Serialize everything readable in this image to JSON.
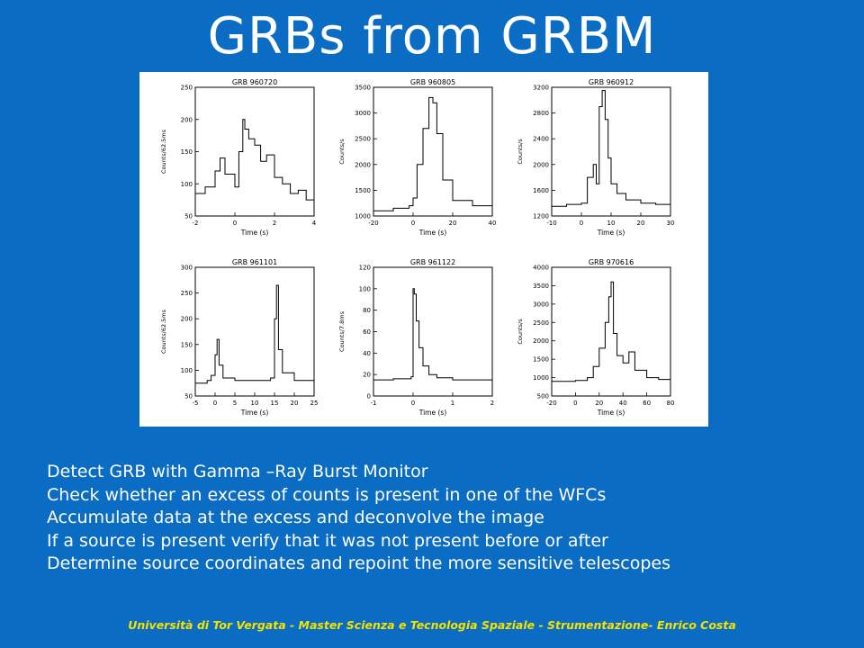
{
  "title": "GRBs from GRBM",
  "bullets": [
    "Detect GRB with Gamma –Ray Burst Monitor",
    "Check whether an excess of counts is present in one of the WFCs",
    "Accumulate data at the excess and deconvolve the image",
    "If a source is present verify that it was not present before or after",
    "Determine source coordinates and repoint the more sensitive telescopes"
  ],
  "footer": "Università di Tor Vergata - Master Scienza e Tecnologia Spaziale - Strumentazione- Enrico Costa",
  "chart_data": [
    {
      "type": "line",
      "title": "GRB 960720",
      "xlabel": "Time (s)",
      "ylabel": "Counts/62.5ms",
      "xlim": [
        -2,
        4
      ],
      "ylim": [
        50,
        250
      ],
      "xticks": [
        -2,
        0,
        2,
        4
      ],
      "yticks": [
        50,
        100,
        150,
        200,
        250
      ],
      "x": [
        -2.0,
        -1.5,
        -1.0,
        -0.75,
        -0.5,
        0.0,
        0.2,
        0.4,
        0.5,
        0.7,
        1.0,
        1.3,
        1.6,
        2.0,
        2.4,
        2.8,
        3.2,
        3.6,
        4.0
      ],
      "y": [
        85,
        95,
        120,
        140,
        115,
        95,
        150,
        200,
        185,
        170,
        160,
        135,
        145,
        110,
        100,
        85,
        90,
        75,
        65
      ]
    },
    {
      "type": "line",
      "title": "GRB 960805",
      "xlabel": "Time (s)",
      "ylabel": "Counts/s",
      "xlim": [
        -20,
        40
      ],
      "ylim": [
        1000,
        3500
      ],
      "xticks": [
        -20,
        0,
        20,
        40
      ],
      "yticks": [
        1000,
        1500,
        2000,
        2500,
        3000,
        3500
      ],
      "x": [
        -20,
        -10,
        -2,
        0,
        2,
        5,
        8,
        10,
        12,
        15,
        20,
        30,
        40
      ],
      "y": [
        1100,
        1150,
        1200,
        1350,
        2000,
        2700,
        3300,
        3200,
        2600,
        1700,
        1300,
        1200,
        1150
      ]
    },
    {
      "type": "line",
      "title": "GRB 960912",
      "xlabel": "Time (s)",
      "ylabel": "Counts/s",
      "xlim": [
        -10,
        30
      ],
      "ylim": [
        1200,
        3200
      ],
      "xticks": [
        -10,
        0,
        10,
        20,
        30
      ],
      "yticks": [
        1200,
        1600,
        2000,
        2400,
        2800,
        3200
      ],
      "x": [
        -10,
        -5,
        0,
        2,
        4,
        5,
        6,
        7,
        8,
        9,
        10,
        12,
        15,
        20,
        25,
        30
      ],
      "y": [
        1350,
        1380,
        1400,
        1800,
        2000,
        1700,
        2900,
        3150,
        2700,
        2100,
        1700,
        1550,
        1450,
        1400,
        1380,
        1350
      ]
    },
    {
      "type": "line",
      "title": "GRB 961101",
      "xlabel": "Time (s)",
      "ylabel": "Counts/62.5ms",
      "xlim": [
        -5,
        25
      ],
      "ylim": [
        50,
        300
      ],
      "xticks": [
        -5,
        0,
        5,
        10,
        15,
        20,
        25
      ],
      "yticks": [
        50,
        100,
        150,
        200,
        250,
        300
      ],
      "x": [
        -5,
        -2,
        -1,
        0,
        0.5,
        1,
        2,
        5,
        10,
        14,
        15,
        15.5,
        16,
        17,
        20,
        25
      ],
      "y": [
        75,
        80,
        90,
        130,
        160,
        110,
        85,
        80,
        80,
        85,
        200,
        265,
        140,
        95,
        80,
        75
      ]
    },
    {
      "type": "line",
      "title": "GRB 961122",
      "xlabel": "Time (s)",
      "ylabel": "Counts/7.8ms",
      "xlim": [
        -1,
        2
      ],
      "ylim": [
        0,
        120
      ],
      "xticks": [
        -1,
        0,
        1,
        2
      ],
      "yticks": [
        0,
        20,
        40,
        60,
        80,
        100,
        120
      ],
      "x": [
        -1.0,
        -0.5,
        -0.05,
        0.0,
        0.03,
        0.08,
        0.15,
        0.25,
        0.4,
        0.6,
        1.0,
        2.0
      ],
      "y": [
        15,
        16,
        18,
        100,
        95,
        70,
        45,
        28,
        20,
        17,
        15,
        15
      ]
    },
    {
      "type": "line",
      "title": "GRB 970616",
      "xlabel": "Time (s)",
      "ylabel": "Counts/s",
      "xlim": [
        -20,
        80
      ],
      "ylim": [
        500,
        4000
      ],
      "xticks": [
        -20,
        0,
        20,
        40,
        60,
        80
      ],
      "yticks": [
        500,
        1000,
        1500,
        2000,
        2500,
        3000,
        3500,
        4000
      ],
      "x": [
        -20,
        0,
        10,
        15,
        20,
        25,
        28,
        30,
        32,
        35,
        40,
        45,
        50,
        60,
        70,
        80
      ],
      "y": [
        900,
        920,
        1000,
        1300,
        1800,
        2500,
        3200,
        3600,
        2200,
        1600,
        1400,
        1700,
        1200,
        1000,
        950,
        900
      ]
    }
  ]
}
